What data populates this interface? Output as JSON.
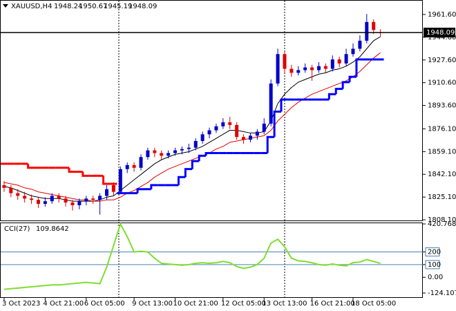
{
  "chart_data": [
    {
      "type": "candlestick",
      "title": "XAUUSD,H4",
      "open": [
        1834,
        1832,
        1828,
        1826,
        1824,
        1823,
        1820,
        1822,
        1826,
        1824,
        1821,
        1819,
        1822,
        1824,
        1823,
        1826,
        1834,
        1829,
        1846,
        1849,
        1847,
        1855,
        1860,
        1858,
        1856,
        1858,
        1860,
        1861,
        1862,
        1867,
        1872,
        1875,
        1878,
        1881,
        1879,
        1870,
        1868,
        1871,
        1874,
        1880,
        1910,
        1932,
        1921,
        1918,
        1920,
        1922,
        1920,
        1923,
        1921,
        1928,
        1925,
        1932,
        1936,
        1942,
        1956,
        1948.24
      ],
      "high": [
        1837,
        1834,
        1831,
        1829,
        1827,
        1825,
        1825,
        1828,
        1828,
        1826,
        1823,
        1824,
        1826,
        1826,
        1828,
        1834,
        1836,
        1848,
        1851,
        1851,
        1857,
        1862,
        1862,
        1860,
        1860,
        1862,
        1863,
        1865,
        1869,
        1874,
        1877,
        1880,
        1884,
        1885,
        1881,
        1872,
        1873,
        1876,
        1884,
        1913,
        1936,
        1934,
        1924,
        1923,
        1925,
        1924,
        1926,
        1925,
        1931,
        1930,
        1936,
        1940,
        1946,
        1962,
        1958,
        1950.67
      ],
      "low": [
        1829,
        1825,
        1823,
        1821,
        1820,
        1817,
        1818,
        1820,
        1821,
        1818,
        1815,
        1816,
        1819,
        1820,
        1812,
        1823,
        1826,
        1828,
        1843,
        1844,
        1845,
        1853,
        1855,
        1853,
        1854,
        1856,
        1857,
        1858,
        1860,
        1865,
        1869,
        1873,
        1876,
        1876,
        1868,
        1865,
        1866,
        1868,
        1872,
        1878,
        1908,
        1918,
        1915,
        1916,
        1918,
        1912,
        1918,
        1918,
        1919,
        1922,
        1923,
        1930,
        1934,
        1940,
        1947,
        1945.19
      ],
      "close": [
        1832,
        1828,
        1826,
        1824,
        1823,
        1820,
        1822,
        1826,
        1824,
        1821,
        1819,
        1822,
        1824,
        1823,
        1826,
        1831,
        1829,
        1846,
        1849,
        1847,
        1855,
        1860,
        1858,
        1856,
        1858,
        1860,
        1861,
        1862,
        1867,
        1872,
        1875,
        1878,
        1881,
        1879,
        1870,
        1868,
        1871,
        1874,
        1880,
        1910,
        1932,
        1921,
        1918,
        1920,
        1922,
        1920,
        1923,
        1921,
        1928,
        1925,
        1932,
        1936,
        1942,
        1956,
        1950,
        1948.09
      ],
      "up_color": "#0000c8",
      "down_color": "#e00000",
      "series": [
        {
          "style": "line",
          "color": "#000000",
          "values": [
            1833,
            1832,
            1830,
            1828,
            1826,
            1825,
            1824,
            1824,
            1824,
            1823,
            1822,
            1822,
            1822,
            1822,
            1823,
            1825,
            1826,
            1830,
            1834,
            1838,
            1842,
            1846,
            1850,
            1853,
            1855,
            1857,
            1858,
            1859,
            1861,
            1863,
            1866,
            1869,
            1872,
            1875,
            1875,
            1874,
            1873,
            1873,
            1874,
            1882,
            1895,
            1902,
            1907,
            1911,
            1913,
            1915,
            1917,
            1918,
            1920,
            1921,
            1923,
            1926,
            1930,
            1936,
            1942,
            1945
          ]
        },
        {
          "style": "line",
          "color": "#e00000",
          "values": [
            1836,
            1835,
            1834,
            1832,
            1831,
            1829,
            1828,
            1827,
            1826,
            1825,
            1824,
            1823,
            1823,
            1822,
            1822,
            1823,
            1823,
            1825,
            1828,
            1830,
            1833,
            1836,
            1840,
            1843,
            1846,
            1848,
            1850,
            1852,
            1854,
            1856,
            1858,
            1861,
            1863,
            1866,
            1867,
            1868,
            1869,
            1870,
            1871,
            1875,
            1882,
            1887,
            1892,
            1896,
            1899,
            1902,
            1904,
            1906,
            1908,
            1910,
            1912,
            1915,
            1919,
            1924,
            1929,
            1933
          ]
        },
        {
          "style": "step",
          "color": "#ff0000",
          "values": [
            1850,
            1850,
            1850,
            1850,
            1847,
            1847,
            1847,
            1847,
            1847,
            1847,
            1844,
            1844,
            1841,
            1841,
            1841,
            1835,
            1835,
            null,
            null,
            null,
            null,
            null,
            null,
            null,
            null,
            null,
            null,
            null,
            null,
            null,
            null,
            null,
            null,
            null,
            null,
            null,
            null,
            null,
            null,
            null,
            null,
            null,
            null,
            null,
            null,
            null,
            null,
            null,
            null,
            null,
            null,
            null,
            null,
            null,
            null,
            null
          ]
        },
        {
          "style": "step",
          "color": "#0000ff",
          "values": [
            null,
            null,
            null,
            null,
            null,
            null,
            null,
            null,
            null,
            null,
            null,
            null,
            null,
            null,
            null,
            null,
            null,
            1828,
            1828,
            1828,
            1831,
            1831,
            1834,
            1834,
            1834,
            1834,
            1840,
            1846,
            1852,
            1856,
            1858,
            1858,
            1858,
            1858,
            1858,
            1858,
            1858,
            1858,
            1858,
            1870,
            1889,
            1898,
            1898,
            1898,
            1898,
            1898,
            1898,
            1898,
            1902,
            1906,
            1911,
            1915,
            1928,
            1928,
            1928,
            1928
          ]
        }
      ],
      "xlim": [
        -0.6,
        61.2
      ],
      "xticks": [
        {
          "value": 0,
          "label": "3 Oct 2023"
        },
        {
          "value": 6,
          "label": "4 Oct 21:00"
        },
        {
          "value": 12,
          "label": "6 Oct 05:00"
        },
        {
          "value": 19,
          "label": "9 Oct 13:00"
        },
        {
          "value": 25,
          "label": "10 Oct 21:00"
        },
        {
          "value": 32,
          "label": "12 Oct 05:00"
        },
        {
          "value": 38,
          "label": "13 Oct 13:00"
        },
        {
          "value": 45,
          "label": "16 Oct 21:00"
        },
        {
          "value": 51,
          "label": "18 Oct 05:00"
        }
      ],
      "ylim": [
        1807.6,
        1971.4
      ],
      "yticks": [
        {
          "value": 1961.6,
          "label": "1961.60"
        },
        {
          "value": 1944.6,
          "label": "1944.60"
        },
        {
          "value": 1927.6,
          "label": "1927.60"
        },
        {
          "value": 1910.6,
          "label": "1910.60"
        },
        {
          "value": 1893.6,
          "label": "1893.60"
        },
        {
          "value": 1876.1,
          "label": "1876.10"
        },
        {
          "value": 1859.1,
          "label": "1859.10"
        },
        {
          "value": 1842.1,
          "label": "1842.10"
        },
        {
          "value": 1825.1,
          "label": "1825.10"
        },
        {
          "value": 1808.1,
          "label": "1808.10"
        }
      ]
    },
    {
      "type": "line",
      "title": "CCI(27)",
      "color": "#7fdd2f",
      "values": [
        -95,
        -90,
        -85,
        -80,
        -75,
        -70,
        -65,
        -60,
        -60,
        -55,
        -50,
        -45,
        -40,
        -45,
        -50,
        80,
        250,
        420,
        320,
        200,
        205,
        200,
        150,
        110,
        105,
        100,
        95,
        100,
        110,
        115,
        110,
        115,
        125,
        115,
        85,
        70,
        80,
        100,
        150,
        270,
        300,
        240,
        150,
        130,
        125,
        115,
        100,
        95,
        105,
        95,
        90,
        115,
        120,
        140,
        125,
        109.8642
      ],
      "levels": [
        200,
        100
      ],
      "level_color": "#4682b4",
      "ylim": [
        -124.1079,
        420.7684
      ],
      "yticks": [
        420.7684,
        200,
        100,
        {
          "value": 0,
          "label": "0.00"
        },
        -124.1079
      ]
    }
  ]
}
